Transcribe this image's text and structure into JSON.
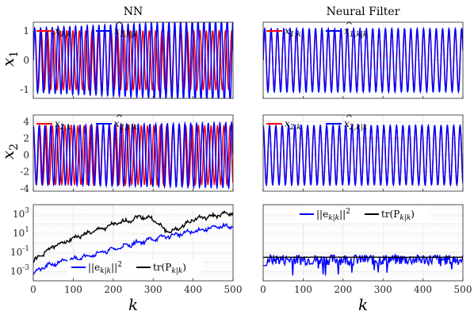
{
  "colors": {
    "true": "#ff0000",
    "estimate": "#0000ff",
    "trace": "#000000"
  },
  "chart_data": [
    {
      "id": "nn-x1",
      "type": "line",
      "title": "NN",
      "xlabel": "",
      "ylabel_main": "x",
      "ylabel_sub": "1",
      "xlim": [
        0,
        500
      ],
      "ylim": [
        -1.3,
        1.3
      ],
      "yticks": [
        -1,
        0,
        1
      ],
      "yticklabels": [
        "-1",
        "0",
        "1"
      ],
      "grid": true,
      "legend": [
        {
          "main": "x",
          "sub": "1,k",
          "hat": false,
          "color": "#ff0000"
        },
        {
          "main": "x",
          "sub": "1,k|k",
          "hat": true,
          "color": "#0000ff"
        }
      ],
      "series": [
        {
          "role": "true",
          "amplitude": 1.0,
          "period": 15.9,
          "color": "#ff0000"
        },
        {
          "role": "estimate",
          "amplitude_start": 1.1,
          "amplitude_end": 1.4,
          "period": 14.6,
          "color": "#0000ff"
        }
      ]
    },
    {
      "id": "nf-x1",
      "type": "line",
      "title": "Neural Filter",
      "xlabel": "",
      "xlim": [
        0,
        500
      ],
      "ylim": [
        -1.3,
        1.3
      ],
      "yticks": [
        -1,
        0,
        1
      ],
      "grid": true,
      "legend": [
        {
          "main": "x",
          "sub": "1,k",
          "hat": false,
          "color": "#ff0000"
        },
        {
          "main": "x",
          "sub": "1,k|k",
          "hat": true,
          "color": "#0000ff"
        }
      ],
      "series": [
        {
          "role": "true",
          "amplitude": 1.0,
          "period": 15.9,
          "color": "#ff0000"
        },
        {
          "role": "estimate",
          "amplitude": 1.08,
          "period": 15.9,
          "color": "#0000ff"
        }
      ]
    },
    {
      "id": "nn-x2",
      "type": "line",
      "xlabel": "",
      "ylabel_main": "x",
      "ylabel_sub": "2",
      "xlim": [
        0,
        500
      ],
      "ylim": [
        -4.3,
        4.8
      ],
      "yticks": [
        -4,
        -2,
        0,
        2,
        4
      ],
      "yticklabels": [
        "-4",
        "-2",
        "0",
        "2",
        "4"
      ],
      "grid": true,
      "legend": [
        {
          "main": "x",
          "sub": "2,k",
          "hat": false,
          "color": "#ff0000"
        },
        {
          "main": "x",
          "sub": "2,k|k",
          "hat": true,
          "color": "#0000ff"
        }
      ],
      "series": [
        {
          "role": "true",
          "amplitude": 3.5,
          "period": 15.9,
          "color": "#ff0000"
        },
        {
          "role": "estimate",
          "amplitude_start": 3.5,
          "amplitude_end": 3.9,
          "period": 14.6,
          "color": "#0000ff"
        }
      ]
    },
    {
      "id": "nf-x2",
      "type": "line",
      "xlabel": "",
      "xlim": [
        0,
        500
      ],
      "ylim": [
        -4.3,
        4.8
      ],
      "yticks": [
        -4,
        -2,
        0,
        2,
        4
      ],
      "grid": true,
      "legend": [
        {
          "main": "x",
          "sub": "2,k",
          "hat": false,
          "color": "#ff0000"
        },
        {
          "main": "x",
          "sub": "2,k|k",
          "hat": true,
          "color": "#0000ff"
        }
      ],
      "series": [
        {
          "role": "true",
          "amplitude": 3.5,
          "period": 15.9,
          "color": "#ff0000"
        },
        {
          "role": "estimate",
          "amplitude": 3.55,
          "period": 15.9,
          "color": "#0000ff"
        }
      ]
    },
    {
      "id": "nn-err",
      "type": "line",
      "xlabel": "k",
      "yscale": "log",
      "xlim": [
        0,
        500
      ],
      "ylim": [
        0.0001,
        10000
      ],
      "yticks": [
        0.001,
        0.1,
        10,
        1000
      ],
      "yticklabels": [
        "10",
        "10",
        "10",
        "10"
      ],
      "ytickexp": [
        "-3",
        "-1",
        "1",
        "3"
      ],
      "xticks": [
        0,
        100,
        200,
        300,
        400,
        500
      ],
      "xticklabels": [
        "0",
        "100",
        "200",
        "300",
        "400",
        "500"
      ],
      "grid": true,
      "legend": [
        {
          "text": "||e",
          "sub": "k|k",
          "tail": "||",
          "sup": "2",
          "color": "#0000ff"
        },
        {
          "text": "tr(P",
          "sub": "k|k",
          "tail": ")",
          "color": "#000000"
        }
      ],
      "series": [
        {
          "name": "||e_k|k||^2",
          "color": "#0000ff",
          "x": [
            0,
            20,
            50,
            100,
            150,
            200,
            250,
            300,
            350,
            400,
            450,
            500
          ],
          "y": [
            0.0006,
            0.002,
            0.006,
            0.02,
            0.06,
            0.2,
            0.8,
            2.5,
            6,
            15,
            40,
            60
          ]
        },
        {
          "name": "tr(P_k|k)",
          "color": "#000000",
          "x": [
            0,
            20,
            50,
            100,
            150,
            200,
            250,
            270,
            300,
            330,
            350,
            380,
            400,
            450,
            500
          ],
          "y": [
            0.01,
            0.05,
            0.4,
            3,
            15,
            80,
            300,
            600,
            300,
            20,
            15,
            80,
            300,
            600,
            1500
          ]
        }
      ]
    },
    {
      "id": "nf-err",
      "type": "line",
      "xlabel": "k",
      "yscale": "log",
      "xlim": [
        0,
        500
      ],
      "ylim": [
        0.0001,
        10000
      ],
      "yticks": [
        0.001,
        0.1,
        10,
        1000
      ],
      "xticks": [
        0,
        100,
        200,
        300,
        400,
        500
      ],
      "xticklabels": [
        "0",
        "100",
        "200",
        "300",
        "400",
        "500"
      ],
      "grid": true,
      "legend": [
        {
          "text": "||e",
          "sub": "k|k",
          "tail": "||",
          "sup": "2",
          "color": "#0000ff"
        },
        {
          "text": "tr(P",
          "sub": "k|k",
          "tail": ")",
          "color": "#000000"
        }
      ],
      "series": [
        {
          "name": "||e_k|k||^2",
          "color": "#0000ff",
          "level": 0.01,
          "scatter_decades": 1.2
        },
        {
          "name": "tr(P_k|k)",
          "color": "#000000",
          "level": 0.03
        }
      ]
    }
  ]
}
